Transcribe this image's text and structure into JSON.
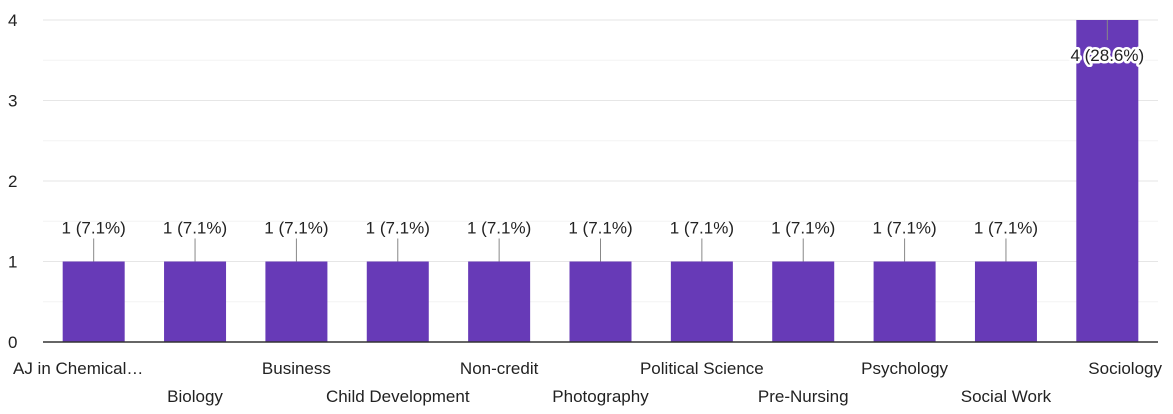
{
  "chart_data": {
    "type": "bar",
    "categories": [
      "AJ in Chemical…",
      "Biology",
      "Business",
      "Child Development",
      "Non-credit",
      "Photography",
      "Political Science",
      "Pre-Nursing",
      "Psychology",
      "Social Work",
      "Sociology"
    ],
    "values": [
      1,
      1,
      1,
      1,
      1,
      1,
      1,
      1,
      1,
      1,
      4
    ],
    "data_labels": [
      "1 (7.1%)",
      "1 (7.1%)",
      "1 (7.1%)",
      "1 (7.1%)",
      "1 (7.1%)",
      "1 (7.1%)",
      "1 (7.1%)",
      "1 (7.1%)",
      "1 (7.1%)",
      "1 (7.1%)",
      "4 (28.6%)"
    ],
    "ylim": [
      0,
      4
    ],
    "yticks": [
      "0",
      "1",
      "2",
      "3",
      "4"
    ],
    "grid": true,
    "colors": {
      "bar": "#673ab7",
      "grid": "#e6e6e6",
      "axis": "#333333",
      "leader": "#888888",
      "text": "#222222"
    }
  }
}
